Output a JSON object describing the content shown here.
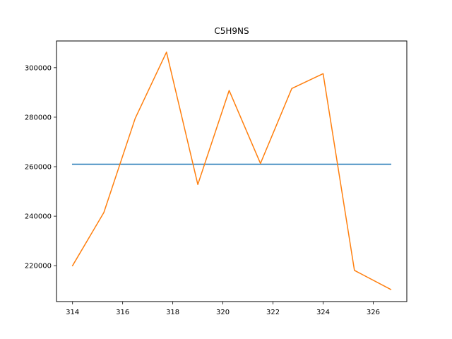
{
  "chart_data": {
    "type": "line",
    "title": "C5H9NS",
    "xlabel": "",
    "ylabel": "",
    "xlim": [
      313.36,
      327.34
    ],
    "ylim": [
      205500,
      310800
    ],
    "xticks": [
      314,
      316,
      318,
      320,
      322,
      324,
      326
    ],
    "yticks": [
      220000,
      240000,
      260000,
      280000,
      300000
    ],
    "grid": false,
    "legend": "none",
    "series": [
      {
        "color": "#1f77b4",
        "x": [
          314.0,
          326.7
        ],
        "y": [
          261000,
          261000
        ]
      },
      {
        "color": "#ff7f0e",
        "x": [
          314.0,
          315.25,
          316.5,
          317.75,
          319.0,
          320.25,
          321.5,
          322.75,
          324.0,
          325.25,
          326.7
        ],
        "y": [
          220000,
          241500,
          279500,
          306300,
          252800,
          290800,
          261300,
          291600,
          297600,
          218100,
          210400
        ]
      }
    ]
  }
}
